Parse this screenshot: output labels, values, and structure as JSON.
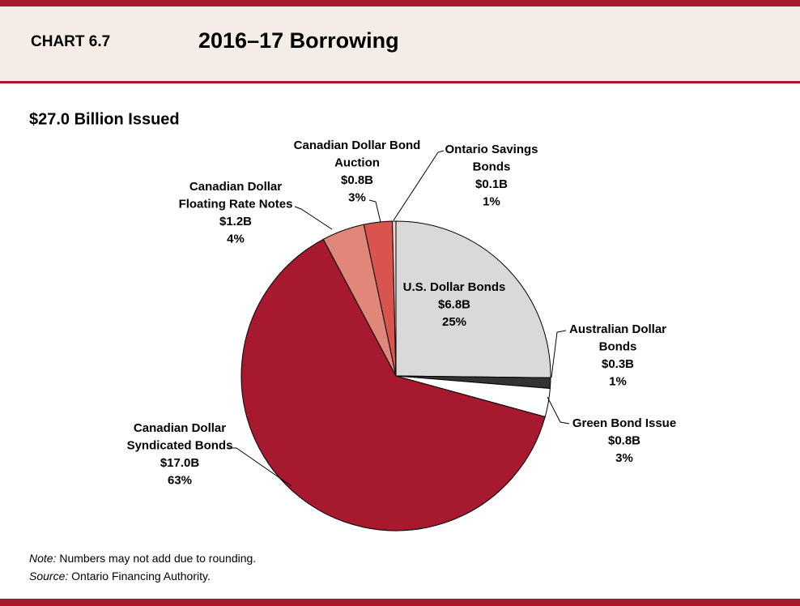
{
  "header": {
    "chart_number": "CHART 6.7"
  },
  "chart_data": {
    "type": "pie",
    "title": "2016–17 Borrowing",
    "subtitle": "$27.0 Billion Issued",
    "categories": [
      [
        "U.S. Dollar Bonds"
      ],
      [
        "Australian Dollar",
        "Bonds"
      ],
      [
        "Green Bond Issue"
      ],
      [
        "Canadian Dollar",
        "Syndicated Bonds"
      ],
      [
        "Canadian Dollar",
        "Floating Rate Notes"
      ],
      [
        "Canadian Dollar Bond",
        "Auction"
      ],
      [
        "Ontario Savings",
        "Bonds"
      ]
    ],
    "values": [
      6.8,
      0.3,
      0.8,
      17.0,
      1.2,
      0.8,
      0.1
    ],
    "value_labels": [
      "$6.8B",
      "$0.3B",
      "$0.8B",
      "$17.0B",
      "$1.2B",
      "$0.8B",
      "$0.1B"
    ],
    "shares": [
      25,
      1,
      3,
      63,
      4,
      3,
      1
    ],
    "share_labels": [
      "25%",
      "1%",
      "3%",
      "63%",
      "4%",
      "3%",
      "1%"
    ],
    "colors": [
      "#d9d9d9",
      "#333333",
      "#ffffff",
      "#a6192e",
      "#e0877a",
      "#d9534f",
      "#f2d3c9"
    ]
  },
  "footer": {
    "note_label": "Note:",
    "note_text": "Numbers may not add due to rounding.",
    "source_label": "Source:",
    "source_text": "Ontario Financing Authority."
  }
}
